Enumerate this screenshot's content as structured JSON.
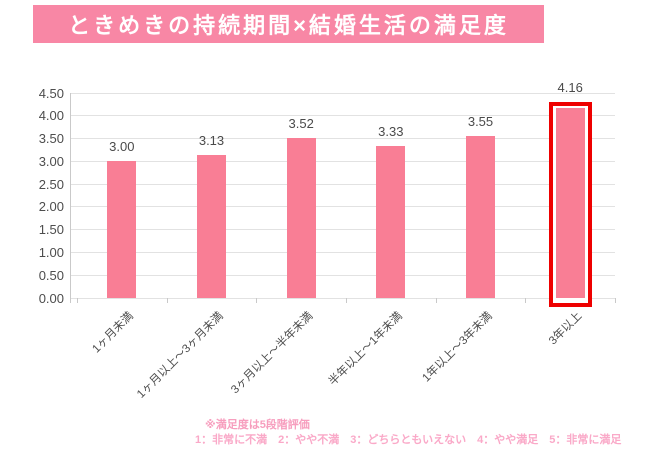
{
  "title": "ときめきの持続期間×結婚生活の満足度",
  "chart_data": {
    "type": "bar",
    "title": "ときめきの持続期間×結婚生活の満足度",
    "categories": [
      "1ヶ月未満",
      "1ヶ月以上〜3ヶ月未満",
      "3ヶ月以上〜半年未満",
      "半年以上〜1年未満",
      "1年以上〜3年未満",
      "3年以上"
    ],
    "values": [
      3.0,
      3.13,
      3.52,
      3.33,
      3.55,
      4.16
    ],
    "value_labels": [
      "3.00",
      "3.13",
      "3.52",
      "3.33",
      "3.55",
      "4.16"
    ],
    "xlabel": "",
    "ylabel": "",
    "ylim": [
      0,
      4.5
    ],
    "y_tick_labels": [
      "0.00",
      "0.50",
      "1.00",
      "1.50",
      "2.00",
      "2.50",
      "3.00",
      "3.50",
      "4.00",
      "4.50"
    ],
    "grid": true,
    "legend": false,
    "highlighted_index": 5,
    "highlighted_category": "3年以上"
  },
  "colors": {
    "banner_bg": "#F887A5",
    "banner_text": "#FFFFFF",
    "bar": "#F97E95",
    "highlight_border": "#EE0000",
    "grid": "#E2E2E2",
    "axis": "#C9C9C9",
    "tick_text": "#4D4D4D",
    "value_text": "#4A4A4A",
    "note_primary": "#F79EBE",
    "note_secondary": "#FAA9C8"
  },
  "footnotes": {
    "line1": "※満足度は5段階評価",
    "line2": "1：非常に不満　2：やや不満　3：どちらともいえない　4：やや満足　5：非常に満足"
  }
}
